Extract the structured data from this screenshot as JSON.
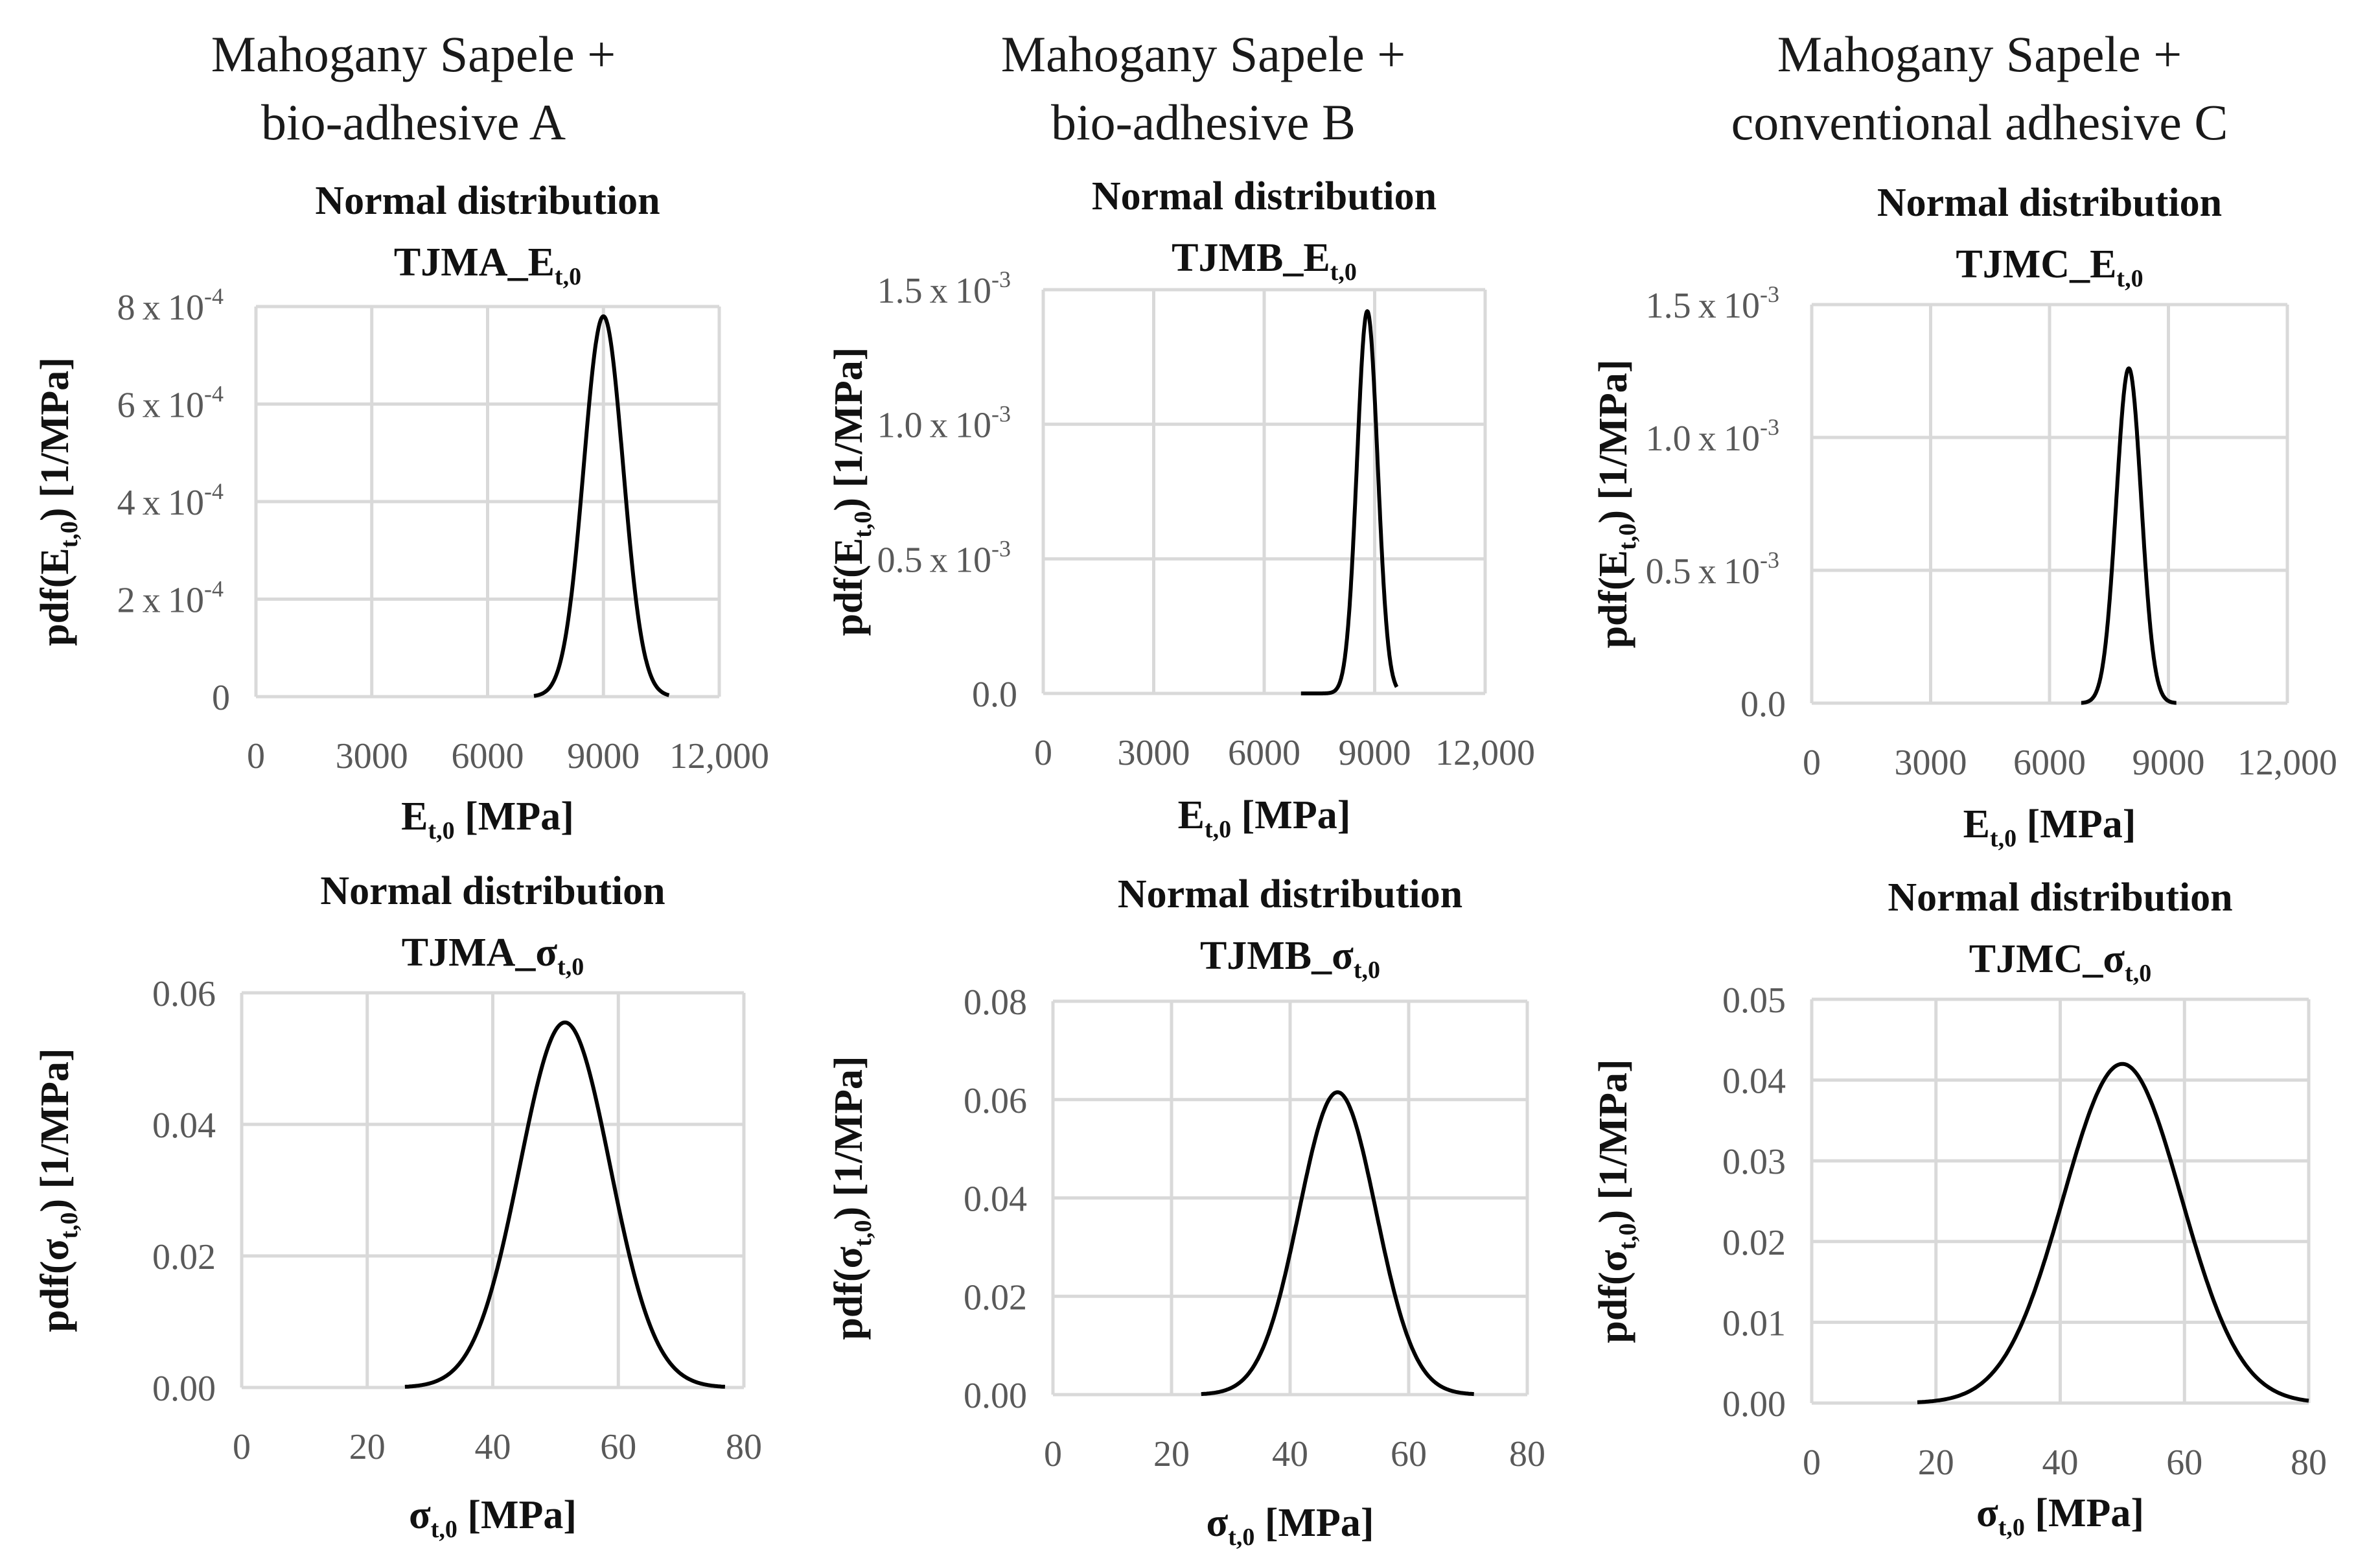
{
  "column_titles": [
    {
      "line1": "Mahogany Sapele +",
      "line2": "bio-adhesive A"
    },
    {
      "line1": "Mahogany Sapele +",
      "line2": "bio-adhesive B"
    },
    {
      "line1": "Mahogany Sapele +",
      "line2": "conventional adhesive C"
    }
  ],
  "chart_data": [
    {
      "id": "A-E",
      "type": "line",
      "title": "Normal distribution",
      "subtitle": {
        "base": "TJMA_E",
        "sub": "t,0"
      },
      "xlabel": {
        "base": "E",
        "sub": "t,0",
        "unit": " [MPa]"
      },
      "ylabel": {
        "pre": "pdf(E",
        "sub": "t,0",
        "post": ") [1/MPa]"
      },
      "xlim": [
        0,
        12000
      ],
      "xticks": [
        0,
        3000,
        6000,
        9000,
        12000
      ],
      "xtick_labels": [
        "0",
        "3000",
        "6000",
        "9000",
        "12,000"
      ],
      "ylim": [
        0,
        0.0008
      ],
      "yticks": [
        0,
        0.0002,
        0.0004,
        0.0006,
        0.0008
      ],
      "ytick_labels": [
        {
          "text": "0"
        },
        {
          "text": "2 x 10",
          "exp": "-4"
        },
        {
          "text": "4 x 10",
          "exp": "-4"
        },
        {
          "text": "6 x 10",
          "exp": "-4"
        },
        {
          "text": "8 x 10",
          "exp": "-4"
        }
      ],
      "series": [
        {
          "name": "Normal pdf",
          "distribution": "normal",
          "mean": 9000,
          "sd": 510,
          "x_range": [
            7200,
            10700
          ],
          "peak": 0.00078
        }
      ]
    },
    {
      "id": "B-E",
      "type": "line",
      "title": "Normal distribution",
      "subtitle": {
        "base": "TJMB_E",
        "sub": "t,0"
      },
      "xlabel": {
        "base": "E",
        "sub": "t,0",
        "unit": " [MPa]"
      },
      "ylabel": {
        "pre": "pdf(E",
        "sub": "t,0",
        "post": ") [1/MPa]"
      },
      "xlim": [
        0,
        12000
      ],
      "xticks": [
        0,
        3000,
        6000,
        9000,
        12000
      ],
      "xtick_labels": [
        "0",
        "3000",
        "6000",
        "9000",
        "12,000"
      ],
      "ylim": [
        0,
        0.0015
      ],
      "yticks": [
        0,
        0.0005,
        0.001,
        0.0015
      ],
      "ytick_labels": [
        {
          "text": "0.0"
        },
        {
          "text": "0.5 x 10",
          "exp": "-3"
        },
        {
          "text": "1.0 x 10",
          "exp": "-3"
        },
        {
          "text": "1.5 x 10",
          "exp": "-3"
        }
      ],
      "series": [
        {
          "name": "Normal pdf",
          "distribution": "normal",
          "mean": 8800,
          "sd": 280,
          "x_range": [
            7000,
            9600
          ],
          "peak": 0.00142
        }
      ]
    },
    {
      "id": "C-E",
      "type": "line",
      "title": "Normal distribution",
      "subtitle": {
        "base": "TJMC_E",
        "sub": "t,0"
      },
      "xlabel": {
        "base": "E",
        "sub": "t,0",
        "unit": " [MPa]"
      },
      "ylabel": {
        "pre": "pdf(E",
        "sub": "t,0",
        "post": ") [1/MPa]"
      },
      "xlim": [
        0,
        12000
      ],
      "xticks": [
        0,
        3000,
        6000,
        9000,
        12000
      ],
      "xtick_labels": [
        "0",
        "3000",
        "6000",
        "9000",
        "12,000"
      ],
      "ylim": [
        0,
        0.0015
      ],
      "yticks": [
        0,
        0.0005,
        0.001,
        0.0015
      ],
      "ytick_labels": [
        {
          "text": "0.0"
        },
        {
          "text": "0.5 x 10",
          "exp": "-3"
        },
        {
          "text": "1.0 x 10",
          "exp": "-3"
        },
        {
          "text": "1.5 x 10",
          "exp": "-3"
        }
      ],
      "series": [
        {
          "name": "Normal pdf",
          "distribution": "normal",
          "mean": 8000,
          "sd": 315,
          "x_range": [
            6800,
            9200
          ],
          "peak": 0.00126
        }
      ]
    },
    {
      "id": "A-S",
      "type": "line",
      "title": "Normal distribution",
      "subtitle": {
        "base": "TJMA_σ",
        "sub": "t,0"
      },
      "xlabel": {
        "base": "σ",
        "sub": "t,0",
        "unit": " [MPa]"
      },
      "ylabel": {
        "pre": "pdf(σ",
        "sub": "t,0",
        "post": ") [1/MPa]"
      },
      "xlim": [
        0,
        80
      ],
      "xticks": [
        0,
        20,
        40,
        60,
        80
      ],
      "xtick_labels": [
        "0",
        "20",
        "40",
        "60",
        "80"
      ],
      "ylim": [
        0,
        0.06
      ],
      "yticks": [
        0,
        0.02,
        0.04,
        0.06
      ],
      "ytick_labels": [
        {
          "text": "0.00"
        },
        {
          "text": "0.02"
        },
        {
          "text": "0.04"
        },
        {
          "text": "0.06"
        }
      ],
      "series": [
        {
          "name": "Normal pdf",
          "distribution": "normal",
          "mean": 51.5,
          "sd": 7.2,
          "x_range": [
            26,
            77
          ],
          "peak": 0.0555
        }
      ]
    },
    {
      "id": "B-S",
      "type": "line",
      "title": "Normal distribution",
      "subtitle": {
        "base": "TJMB_σ",
        "sub": "t,0"
      },
      "xlabel": {
        "base": "σ",
        "sub": "t,0",
        "unit": " [MPa]"
      },
      "ylabel": {
        "pre": "pdf(σ",
        "sub": "t,0",
        "post": ") [1/MPa]"
      },
      "xlim": [
        0,
        80
      ],
      "xticks": [
        0,
        20,
        40,
        60,
        80
      ],
      "xtick_labels": [
        "0",
        "20",
        "40",
        "60",
        "80"
      ],
      "ylim": [
        0,
        0.08
      ],
      "yticks": [
        0,
        0.02,
        0.04,
        0.06,
        0.08
      ],
      "ytick_labels": [
        {
          "text": "0.00"
        },
        {
          "text": "0.02"
        },
        {
          "text": "0.04"
        },
        {
          "text": "0.06"
        },
        {
          "text": "0.08"
        }
      ],
      "series": [
        {
          "name": "Normal pdf",
          "distribution": "normal",
          "mean": 48,
          "sd": 6.5,
          "x_range": [
            25,
            71
          ],
          "peak": 0.0615
        }
      ]
    },
    {
      "id": "C-S",
      "type": "line",
      "title": "Normal distribution",
      "subtitle": {
        "base": "TJMC_σ",
        "sub": "t,0"
      },
      "xlabel": {
        "base": "σ",
        "sub": "t,0",
        "unit": " [MPa]"
      },
      "ylabel": {
        "pre": "pdf(σ",
        "sub": "t,0",
        "post": ") [1/MPa]"
      },
      "xlim": [
        0,
        80
      ],
      "xticks": [
        0,
        20,
        40,
        60,
        80
      ],
      "xtick_labels": [
        "0",
        "20",
        "40",
        "60",
        "80"
      ],
      "ylim": [
        0,
        0.05
      ],
      "yticks": [
        0,
        0.01,
        0.02,
        0.03,
        0.04,
        0.05
      ],
      "ytick_labels": [
        {
          "text": "0.00"
        },
        {
          "text": "0.01"
        },
        {
          "text": "0.02"
        },
        {
          "text": "0.03"
        },
        {
          "text": "0.04"
        },
        {
          "text": "0.05"
        }
      ],
      "series": [
        {
          "name": "Normal pdf",
          "distribution": "normal",
          "mean": 50,
          "sd": 9.5,
          "x_range": [
            17,
            80
          ],
          "peak": 0.042
        }
      ]
    }
  ]
}
